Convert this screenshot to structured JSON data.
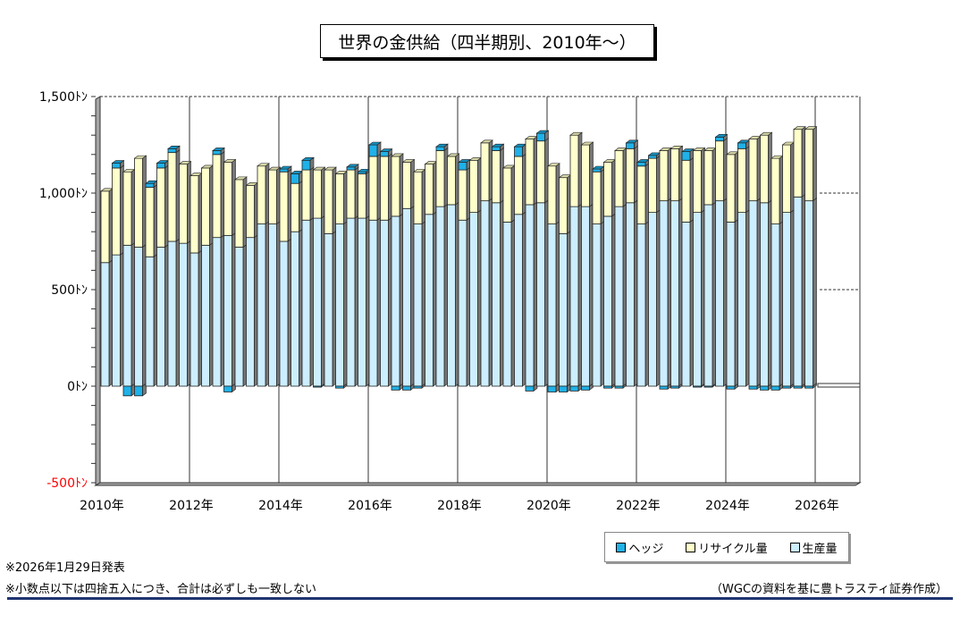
{
  "title": "世界の金供給（四半期別、2010年～）",
  "chart_data": {
    "type": "bar",
    "stacked": true,
    "title": "世界の金供給（四半期別、2010年～）",
    "xlabel": "",
    "ylabel": "",
    "ylim": [
      -500,
      1500
    ],
    "yticks": [
      -500,
      0,
      500,
      1000,
      1500
    ],
    "ytick_labels": [
      "-500ﾄﾝ",
      "0ﾄﾝ",
      "500ﾄﾝ",
      "1,000ﾄﾝ",
      "1,500ﾄﾝ"
    ],
    "xtick_labels": [
      "2010年",
      "2012年",
      "2014年",
      "2016年",
      "2018年",
      "2020年",
      "2022年",
      "2024年",
      "2026年"
    ],
    "grid": "vertical lines every 2 years; dashed horizontal lines at 1,000 and 500 beyond data",
    "legend_position": "bottom-right",
    "categories": [
      "2010Q1",
      "2010Q2",
      "2010Q3",
      "2010Q4",
      "2011Q1",
      "2011Q2",
      "2011Q3",
      "2011Q4",
      "2012Q1",
      "2012Q2",
      "2012Q3",
      "2012Q4",
      "2013Q1",
      "2013Q2",
      "2013Q3",
      "2013Q4",
      "2014Q1",
      "2014Q2",
      "2014Q3",
      "2014Q4",
      "2015Q1",
      "2015Q2",
      "2015Q3",
      "2015Q4",
      "2016Q1",
      "2016Q2",
      "2016Q3",
      "2016Q4",
      "2017Q1",
      "2017Q2",
      "2017Q3",
      "2017Q4",
      "2018Q1",
      "2018Q2",
      "2018Q3",
      "2018Q4",
      "2019Q1",
      "2019Q2",
      "2019Q3",
      "2019Q4",
      "2020Q1",
      "2020Q2",
      "2020Q3",
      "2020Q4",
      "2021Q1",
      "2021Q2",
      "2021Q3",
      "2021Q4",
      "2022Q1",
      "2022Q2",
      "2022Q3",
      "2022Q4",
      "2023Q1",
      "2023Q2",
      "2023Q3",
      "2023Q4",
      "2024Q1",
      "2024Q2",
      "2024Q3",
      "2024Q4",
      "2025Q1",
      "2025Q2",
      "2025Q3",
      "2025Q4"
    ],
    "series": [
      {
        "name": "生産量",
        "color": "#cceeff",
        "values": [
          640,
          680,
          730,
          720,
          670,
          720,
          750,
          740,
          690,
          730,
          770,
          780,
          720,
          770,
          840,
          840,
          750,
          800,
          860,
          870,
          790,
          840,
          870,
          870,
          860,
          860,
          880,
          920,
          840,
          890,
          930,
          940,
          860,
          900,
          960,
          950,
          850,
          890,
          940,
          950,
          840,
          790,
          930,
          930,
          840,
          880,
          930,
          950,
          840,
          900,
          960,
          960,
          850,
          900,
          940,
          960,
          850,
          900,
          960,
          950,
          840,
          900,
          980,
          960
        ]
      },
      {
        "name": "リサイクル量",
        "color": "#ffffcc",
        "values": [
          370,
          450,
          380,
          460,
          360,
          410,
          460,
          410,
          400,
          400,
          430,
          380,
          350,
          270,
          300,
          280,
          360,
          250,
          260,
          250,
          330,
          260,
          250,
          230,
          330,
          330,
          310,
          240,
          270,
          260,
          290,
          250,
          260,
          270,
          300,
          270,
          280,
          300,
          340,
          320,
          300,
          290,
          370,
          320,
          270,
          280,
          290,
          280,
          300,
          280,
          260,
          270,
          320,
          320,
          280,
          310,
          350,
          330,
          320,
          350,
          340,
          350,
          350,
          370
        ]
      },
      {
        "name": "ヘッジ",
        "color": "#1fb1e8",
        "values": [
          0,
          25,
          -50,
          -50,
          20,
          25,
          20,
          0,
          0,
          0,
          20,
          -30,
          0,
          0,
          0,
          0,
          15,
          50,
          50,
          -5,
          0,
          -10,
          15,
          10,
          60,
          25,
          -20,
          -20,
          -10,
          0,
          20,
          0,
          40,
          0,
          0,
          20,
          0,
          50,
          -25,
          40,
          -30,
          -30,
          -25,
          -20,
          15,
          -10,
          -10,
          30,
          20,
          15,
          -15,
          -10,
          45,
          -5,
          -5,
          20,
          -15,
          30,
          -15,
          -20,
          -20,
          -10,
          -10,
          -10
        ]
      }
    ]
  },
  "legend": [
    {
      "label": "ヘッジ",
      "color": "#1fb1e8"
    },
    {
      "label": "リサイクル量",
      "color": "#ffffcc"
    },
    {
      "label": "生産量",
      "color": "#cceeff"
    }
  ],
  "notes": [
    "※2026年1月29日発表",
    "※小数点以下は四捨五入につき、合計は必ずしも一致しない"
  ],
  "source": "（WGCの資料を基に豊トラスティ証券作成）"
}
